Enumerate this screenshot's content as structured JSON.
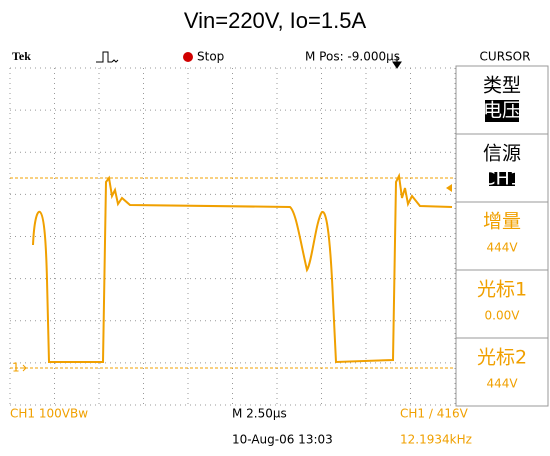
{
  "title": "Vin=220V, Io=1.5A",
  "header": {
    "brand": "Tek",
    "status": "Stop",
    "position": "M Pos: -9.000µs",
    "menu_title": "CURSOR"
  },
  "menu": [
    {
      "label": "类型",
      "value": "电压"
    },
    {
      "label": "信源",
      "value": "CH1"
    },
    {
      "label": "增量",
      "value": "444V"
    },
    {
      "label": "光标1",
      "value": "0.00V"
    },
    {
      "label": "光标2",
      "value": "444V"
    }
  ],
  "footer": {
    "channel": "CH1  100VBw",
    "timebase": "M 2.50µs",
    "trigger": "CH1 ∕ 416V",
    "date": "10-Aug-06 13:03",
    "frequency": "12.1934kHz"
  },
  "markers": {
    "ground": "1"
  }
}
